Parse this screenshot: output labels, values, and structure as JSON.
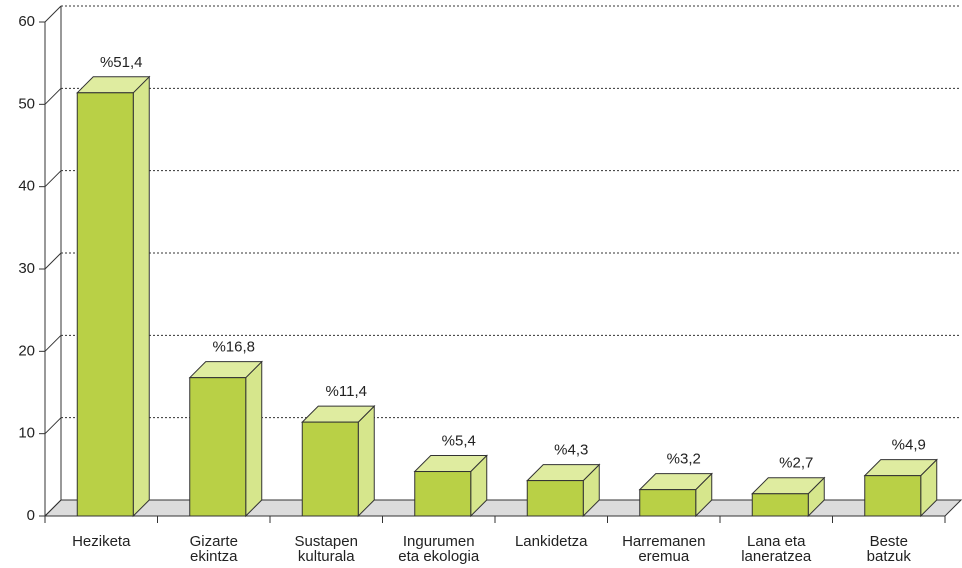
{
  "chart_data": {
    "type": "bar3d",
    "categories": [
      [
        "Heziketa"
      ],
      [
        "Gizarte",
        "ekintza"
      ],
      [
        "Sustapen",
        "kulturala"
      ],
      [
        "Ingurumen",
        "eta ekologia"
      ],
      [
        "Lankidetza"
      ],
      [
        "Harremanen",
        "eremua"
      ],
      [
        "Lana eta",
        "laneratzea"
      ],
      [
        "Beste",
        "batzuk"
      ]
    ],
    "values": [
      51.4,
      16.8,
      11.4,
      5.4,
      4.3,
      3.2,
      2.7,
      4.9
    ],
    "value_labels": [
      "%51,4",
      "%16,8",
      "%11,4",
      "%5,4",
      "%4,3",
      "%3,2",
      "%2,7",
      "%4,9"
    ],
    "color": "#b9d046",
    "ylim": [
      0,
      60
    ],
    "yticks": [
      0,
      10,
      20,
      30,
      40,
      50,
      60
    ],
    "grid": true
  }
}
